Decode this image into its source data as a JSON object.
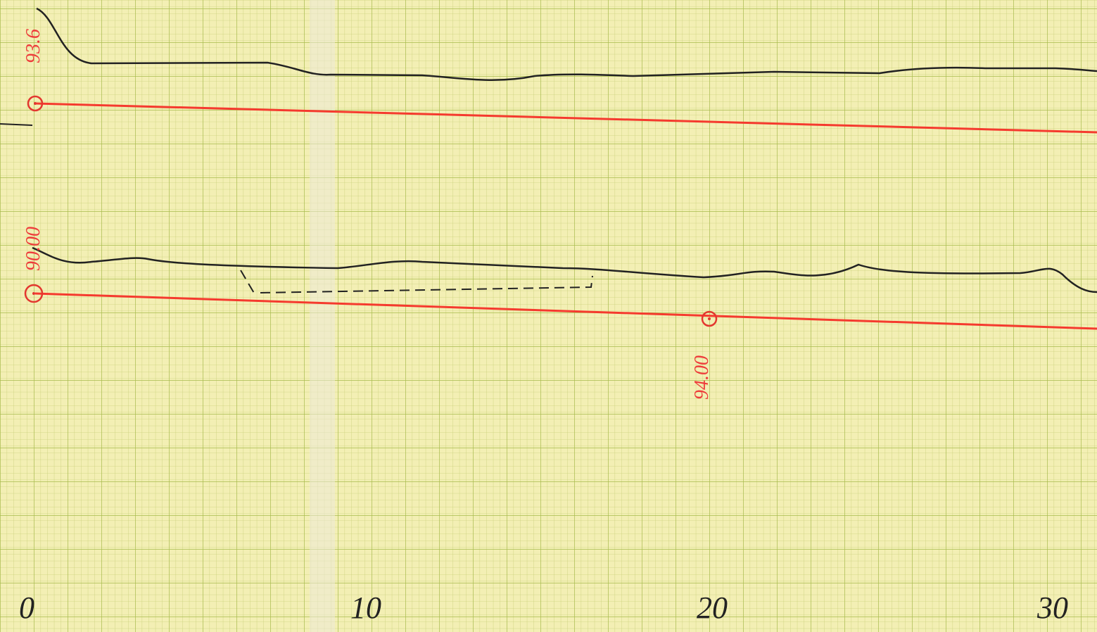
{
  "axis_labels": [
    "0",
    "10",
    "20",
    "30"
  ],
  "annotations": {
    "top_start": "93.6",
    "bottom_start": "90.00",
    "bottom_mid": "94.00"
  }
}
